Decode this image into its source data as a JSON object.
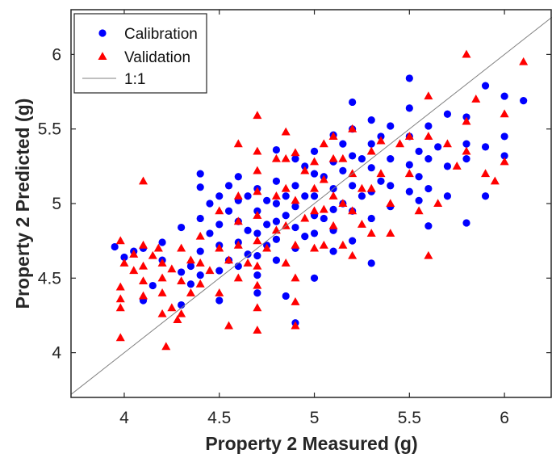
{
  "chart_data": {
    "type": "scatter",
    "title": "",
    "xlabel": "Property 2 Measured (g)",
    "ylabel": "Property 2 Predicted (g)",
    "xlim": [
      3.72,
      6.25
    ],
    "ylim": [
      3.7,
      6.3
    ],
    "xticks": [
      4,
      4.5,
      5,
      5.5,
      6
    ],
    "yticks": [
      4,
      4.5,
      5,
      5.5,
      6
    ],
    "xtick_labels": [
      "4",
      "4.5",
      "5",
      "5.5",
      "6"
    ],
    "ytick_labels": [
      "4",
      "4.5",
      "5",
      "5.5",
      "6"
    ],
    "grid": false,
    "legend_position": "top-left",
    "reference_line": {
      "name": "1:1",
      "color": "#808080"
    },
    "series": [
      {
        "name": "Calibration",
        "marker": "circle",
        "color": "#0000ff",
        "points": [
          [
            3.95,
            4.71
          ],
          [
            4.0,
            4.64
          ],
          [
            4.05,
            4.68
          ],
          [
            4.1,
            4.35
          ],
          [
            4.1,
            4.7
          ],
          [
            4.15,
            4.45
          ],
          [
            4.2,
            4.74
          ],
          [
            4.2,
            4.62
          ],
          [
            4.3,
            4.84
          ],
          [
            4.3,
            4.54
          ],
          [
            4.3,
            4.32
          ],
          [
            4.35,
            4.58
          ],
          [
            4.35,
            4.46
          ],
          [
            4.4,
            5.2
          ],
          [
            4.4,
            5.11
          ],
          [
            4.4,
            4.9
          ],
          [
            4.4,
            4.68
          ],
          [
            4.4,
            4.52
          ],
          [
            4.45,
            5.0
          ],
          [
            4.45,
            4.8
          ],
          [
            4.5,
            5.05
          ],
          [
            4.5,
            4.86
          ],
          [
            4.5,
            4.72
          ],
          [
            4.5,
            4.55
          ],
          [
            4.5,
            4.35
          ],
          [
            4.55,
            5.12
          ],
          [
            4.55,
            4.95
          ],
          [
            4.55,
            4.62
          ],
          [
            4.6,
            5.18
          ],
          [
            4.6,
            5.02
          ],
          [
            4.6,
            4.88
          ],
          [
            4.6,
            4.74
          ],
          [
            4.6,
            4.58
          ],
          [
            4.65,
            5.05
          ],
          [
            4.65,
            4.82
          ],
          [
            4.65,
            4.66
          ],
          [
            4.7,
            5.1
          ],
          [
            4.7,
            4.95
          ],
          [
            4.7,
            4.8
          ],
          [
            4.7,
            4.65
          ],
          [
            4.7,
            4.52
          ],
          [
            4.7,
            4.4
          ],
          [
            4.75,
            5.02
          ],
          [
            4.75,
            4.86
          ],
          [
            4.75,
            4.72
          ],
          [
            4.8,
            5.36
          ],
          [
            4.8,
            5.15
          ],
          [
            4.8,
            5.0
          ],
          [
            4.8,
            4.88
          ],
          [
            4.8,
            4.76
          ],
          [
            4.8,
            4.62
          ],
          [
            4.85,
            5.05
          ],
          [
            4.85,
            4.92
          ],
          [
            4.85,
            4.38
          ],
          [
            4.9,
            5.3
          ],
          [
            4.9,
            5.12
          ],
          [
            4.9,
            4.98
          ],
          [
            4.9,
            4.84
          ],
          [
            4.9,
            4.7
          ],
          [
            4.9,
            4.2
          ],
          [
            4.95,
            5.25
          ],
          [
            4.95,
            5.05
          ],
          [
            4.95,
            4.78
          ],
          [
            5.0,
            5.35
          ],
          [
            5.0,
            5.2
          ],
          [
            5.0,
            5.05
          ],
          [
            5.0,
            4.92
          ],
          [
            5.0,
            4.8
          ],
          [
            5.0,
            4.5
          ],
          [
            5.05,
            5.18
          ],
          [
            5.05,
            4.9
          ],
          [
            5.1,
            5.46
          ],
          [
            5.1,
            5.28
          ],
          [
            5.1,
            5.1
          ],
          [
            5.1,
            4.96
          ],
          [
            5.1,
            4.82
          ],
          [
            5.1,
            4.68
          ],
          [
            5.15,
            5.4
          ],
          [
            5.15,
            5.22
          ],
          [
            5.15,
            5.0
          ],
          [
            5.2,
            5.68
          ],
          [
            5.2,
            5.5
          ],
          [
            5.2,
            5.32
          ],
          [
            5.2,
            5.12
          ],
          [
            5.2,
            4.95
          ],
          [
            5.2,
            4.75
          ],
          [
            5.25,
            5.3
          ],
          [
            5.25,
            5.05
          ],
          [
            5.3,
            5.56
          ],
          [
            5.3,
            5.4
          ],
          [
            5.3,
            5.24
          ],
          [
            5.3,
            5.08
          ],
          [
            5.3,
            4.9
          ],
          [
            5.3,
            4.6
          ],
          [
            5.35,
            5.45
          ],
          [
            5.35,
            5.15
          ],
          [
            5.4,
            5.52
          ],
          [
            5.4,
            5.3
          ],
          [
            5.4,
            5.12
          ],
          [
            5.4,
            4.98
          ],
          [
            5.5,
            5.84
          ],
          [
            5.5,
            5.64
          ],
          [
            5.5,
            5.45
          ],
          [
            5.5,
            5.26
          ],
          [
            5.5,
            5.08
          ],
          [
            5.55,
            5.35
          ],
          [
            5.55,
            5.18
          ],
          [
            5.55,
            5.02
          ],
          [
            5.6,
            5.52
          ],
          [
            5.6,
            5.3
          ],
          [
            5.6,
            5.1
          ],
          [
            5.6,
            4.85
          ],
          [
            5.65,
            5.38
          ],
          [
            5.7,
            5.6
          ],
          [
            5.7,
            5.25
          ],
          [
            5.7,
            5.05
          ],
          [
            5.8,
            5.58
          ],
          [
            5.8,
            5.4
          ],
          [
            5.8,
            5.3
          ],
          [
            5.8,
            4.87
          ],
          [
            5.9,
            5.79
          ],
          [
            5.9,
            5.38
          ],
          [
            5.9,
            5.05
          ],
          [
            6.0,
            5.72
          ],
          [
            6.0,
            5.45
          ],
          [
            6.0,
            5.32
          ],
          [
            6.1,
            5.69
          ]
        ]
      },
      {
        "name": "Validation",
        "marker": "triangle",
        "color": "#ff0000",
        "points": [
          [
            3.98,
            4.75
          ],
          [
            3.98,
            4.44
          ],
          [
            3.98,
            4.36
          ],
          [
            3.98,
            4.3
          ],
          [
            3.98,
            4.1
          ],
          [
            4.0,
            4.6
          ],
          [
            4.05,
            4.66
          ],
          [
            4.05,
            4.55
          ],
          [
            4.1,
            5.15
          ],
          [
            4.1,
            4.72
          ],
          [
            4.1,
            4.58
          ],
          [
            4.1,
            4.48
          ],
          [
            4.1,
            4.38
          ],
          [
            4.15,
            4.65
          ],
          [
            4.18,
            4.7
          ],
          [
            4.2,
            4.6
          ],
          [
            4.2,
            4.5
          ],
          [
            4.2,
            4.4
          ],
          [
            4.2,
            4.26
          ],
          [
            4.22,
            4.04
          ],
          [
            4.25,
            4.56
          ],
          [
            4.25,
            4.3
          ],
          [
            4.28,
            4.22
          ],
          [
            4.3,
            4.7
          ],
          [
            4.3,
            4.48
          ],
          [
            4.3,
            4.26
          ],
          [
            4.35,
            4.62
          ],
          [
            4.35,
            4.4
          ],
          [
            4.4,
            4.78
          ],
          [
            4.4,
            4.6
          ],
          [
            4.4,
            4.46
          ],
          [
            4.45,
            4.55
          ],
          [
            4.5,
            4.95
          ],
          [
            4.5,
            4.7
          ],
          [
            4.5,
            4.4
          ],
          [
            4.55,
            4.62
          ],
          [
            4.55,
            4.18
          ],
          [
            4.6,
            5.4
          ],
          [
            4.6,
            5.05
          ],
          [
            4.6,
            4.88
          ],
          [
            4.6,
            4.72
          ],
          [
            4.6,
            4.5
          ],
          [
            4.65,
            4.6
          ],
          [
            4.7,
            5.59
          ],
          [
            4.7,
            5.35
          ],
          [
            4.7,
            5.22
          ],
          [
            4.7,
            5.08
          ],
          [
            4.7,
            4.92
          ],
          [
            4.7,
            4.75
          ],
          [
            4.7,
            4.58
          ],
          [
            4.7,
            4.45
          ],
          [
            4.7,
            4.3
          ],
          [
            4.7,
            4.15
          ],
          [
            4.75,
            4.7
          ],
          [
            4.8,
            5.3
          ],
          [
            4.8,
            5.05
          ],
          [
            4.8,
            4.82
          ],
          [
            4.85,
            5.48
          ],
          [
            4.85,
            5.3
          ],
          [
            4.85,
            5.1
          ],
          [
            4.85,
            4.85
          ],
          [
            4.85,
            4.6
          ],
          [
            4.9,
            5.34
          ],
          [
            4.9,
            5.02
          ],
          [
            4.9,
            4.72
          ],
          [
            4.9,
            4.5
          ],
          [
            4.9,
            4.34
          ],
          [
            4.9,
            4.18
          ],
          [
            4.95,
            5.22
          ],
          [
            4.95,
            4.9
          ],
          [
            5.0,
            5.28
          ],
          [
            5.0,
            5.1
          ],
          [
            5.0,
            4.95
          ],
          [
            5.0,
            4.7
          ],
          [
            5.05,
            5.4
          ],
          [
            5.05,
            5.16
          ],
          [
            5.05,
            4.96
          ],
          [
            5.05,
            4.72
          ],
          [
            5.1,
            5.45
          ],
          [
            5.1,
            5.3
          ],
          [
            5.1,
            5.05
          ],
          [
            5.1,
            4.85
          ],
          [
            5.15,
            5.3
          ],
          [
            5.15,
            5.0
          ],
          [
            5.15,
            4.72
          ],
          [
            5.2,
            5.5
          ],
          [
            5.2,
            5.2
          ],
          [
            5.2,
            4.95
          ],
          [
            5.2,
            4.65
          ],
          [
            5.25,
            5.1
          ],
          [
            5.25,
            4.86
          ],
          [
            5.3,
            5.35
          ],
          [
            5.3,
            5.1
          ],
          [
            5.3,
            4.8
          ],
          [
            5.35,
            5.42
          ],
          [
            5.35,
            5.2
          ],
          [
            5.4,
            5.0
          ],
          [
            5.4,
            4.8
          ],
          [
            5.45,
            5.4
          ],
          [
            5.5,
            5.45
          ],
          [
            5.5,
            5.2
          ],
          [
            5.55,
            4.95
          ],
          [
            5.6,
            5.72
          ],
          [
            5.6,
            5.45
          ],
          [
            5.6,
            4.65
          ],
          [
            5.65,
            5.0
          ],
          [
            5.7,
            5.4
          ],
          [
            5.75,
            5.25
          ],
          [
            5.8,
            6.0
          ],
          [
            5.8,
            5.55
          ],
          [
            5.8,
            5.35
          ],
          [
            5.85,
            5.7
          ],
          [
            5.9,
            5.2
          ],
          [
            5.95,
            5.15
          ],
          [
            6.0,
            5.6
          ],
          [
            6.0,
            5.28
          ],
          [
            6.1,
            5.95
          ]
        ]
      }
    ]
  }
}
